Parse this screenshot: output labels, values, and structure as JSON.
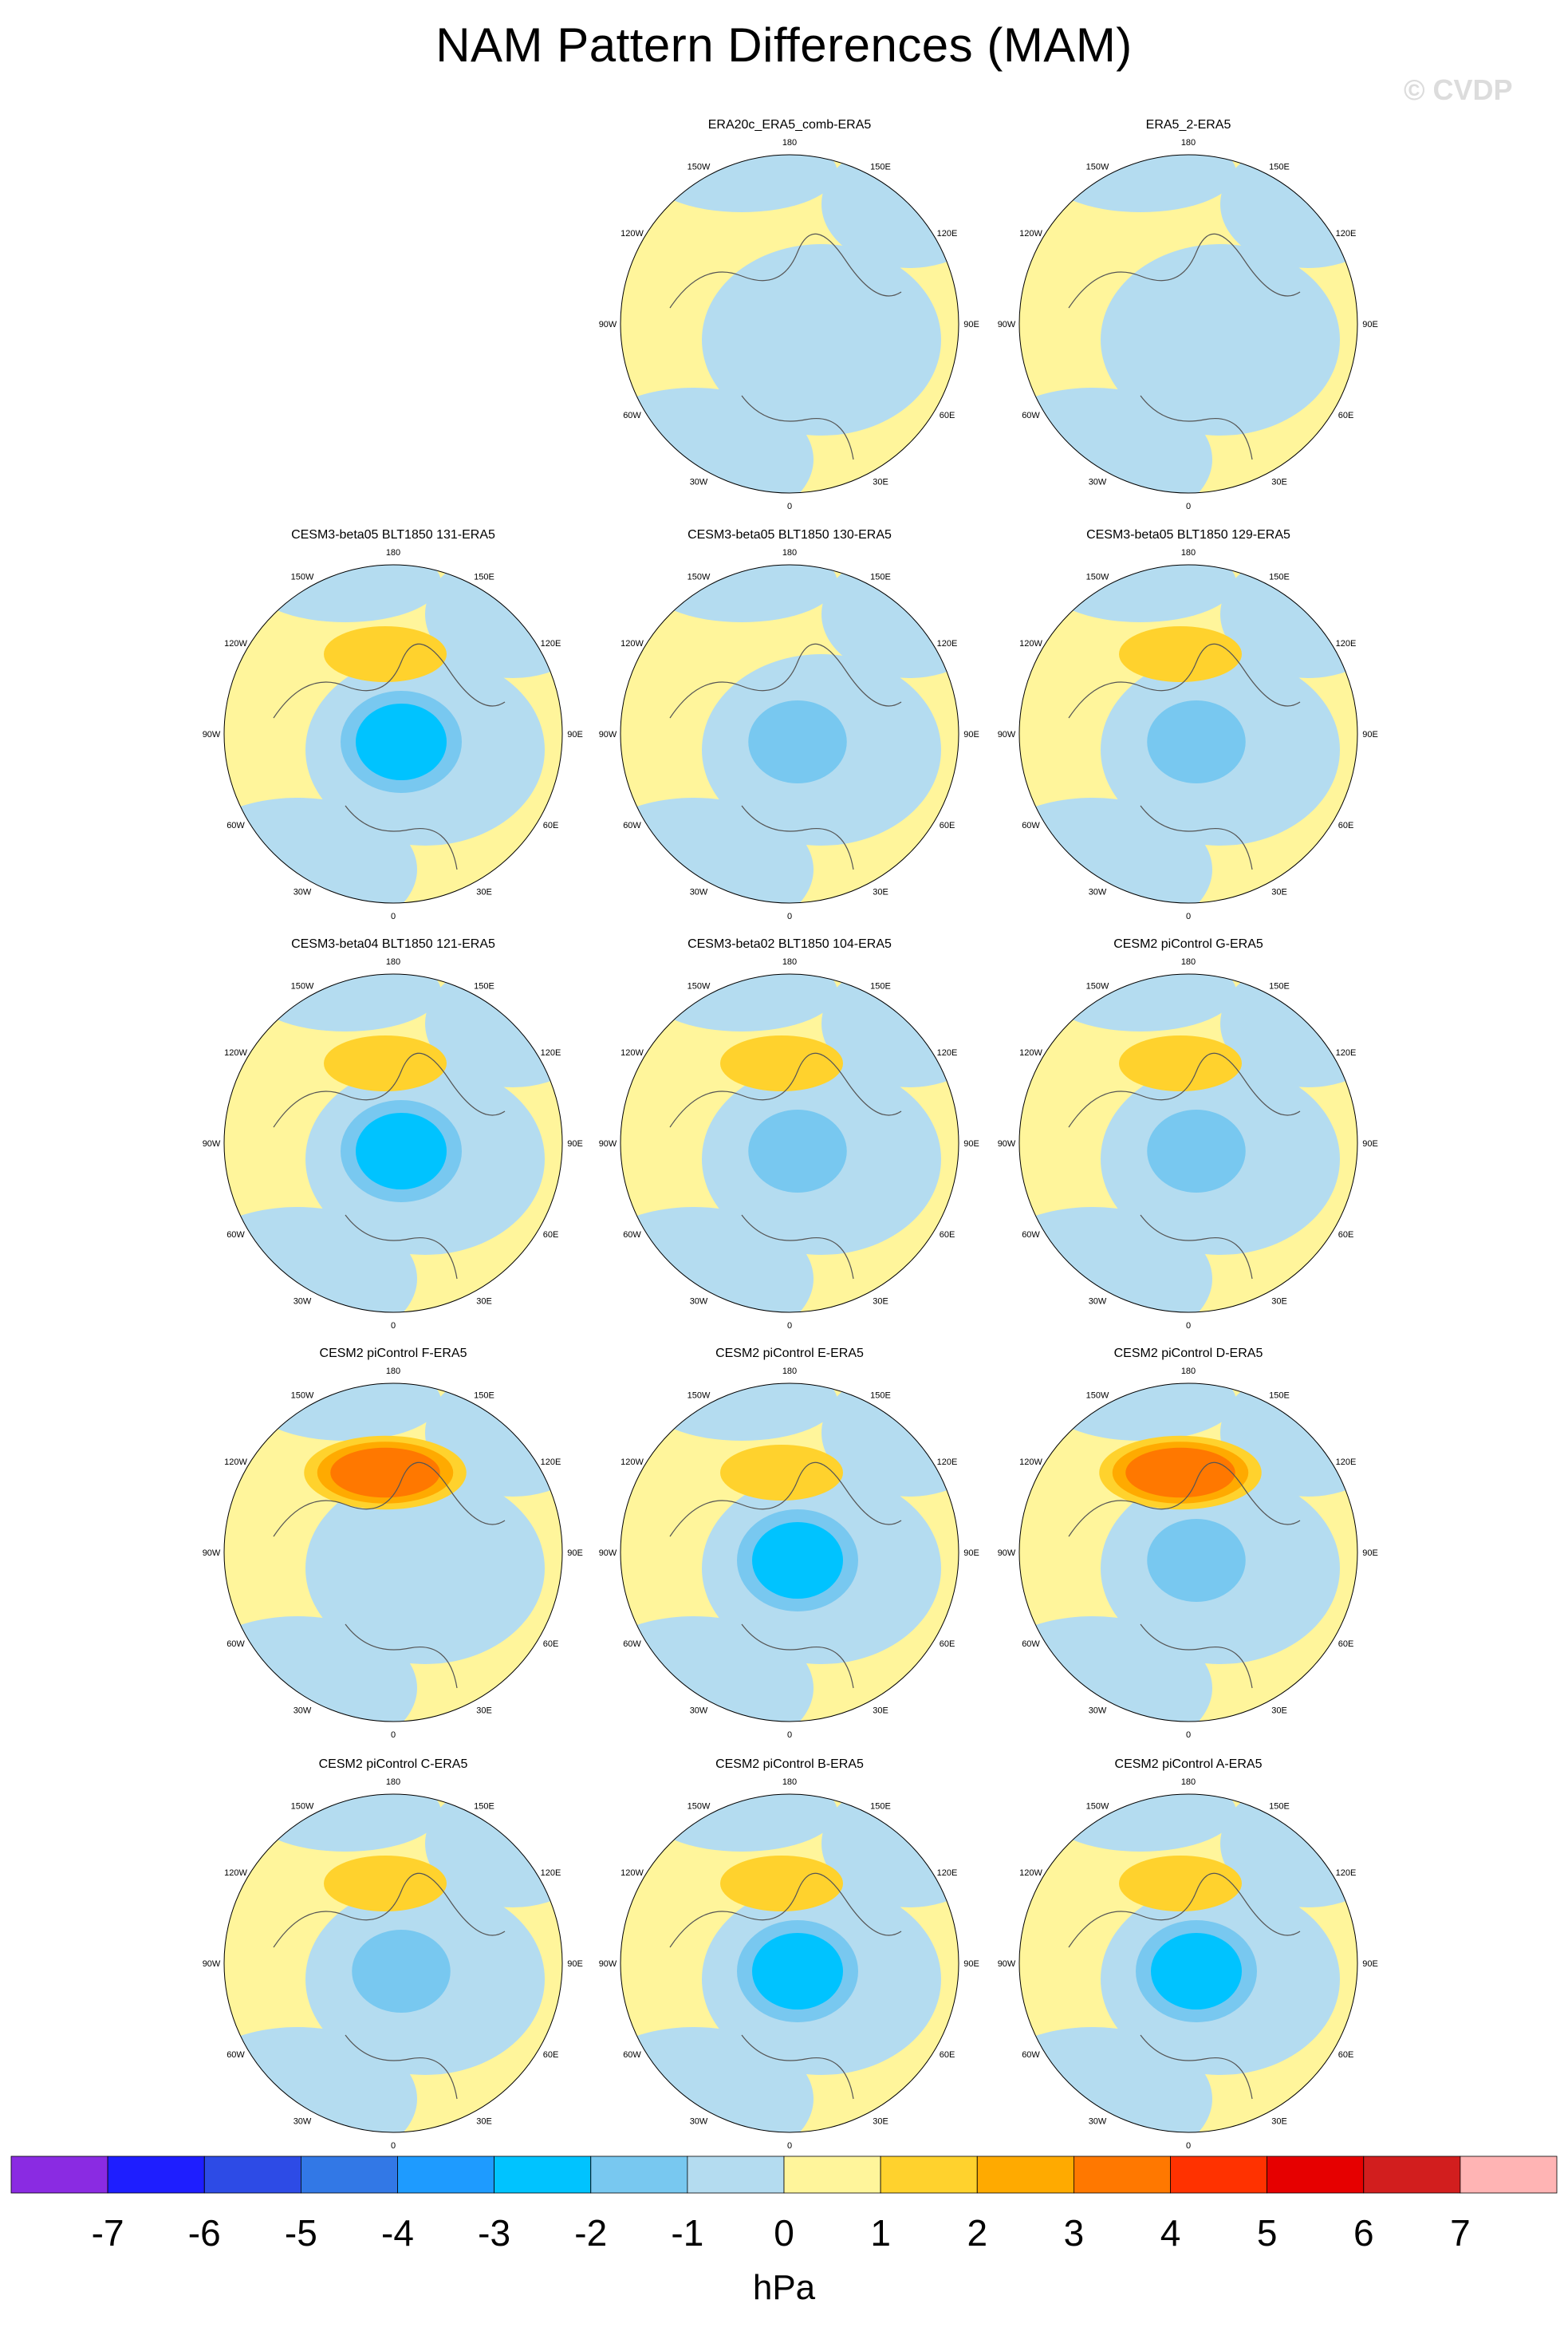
{
  "chart_data": {
    "type": "heatmap",
    "title": "NAM Pattern Differences (MAM)",
    "watermark": "© CVDP",
    "projection": "polar stereographic, Northern Hemisphere",
    "units": "hPa",
    "colorbar": {
      "levels": [
        "-7",
        "-6",
        "-5",
        "-4",
        "-3",
        "-2",
        "-1",
        "0",
        "1",
        "2",
        "3",
        "4",
        "5",
        "6",
        "7"
      ],
      "colors": [
        "#8a2be2",
        "#1e1eff",
        "#2d4be6",
        "#3278e6",
        "#1e9bff",
        "#00c3ff",
        "#78c8f0",
        "#b4dcf0",
        "#fff59b",
        "#ffd22d",
        "#ffaa00",
        "#ff7800",
        "#ff3200",
        "#e60000",
        "#d21e1e",
        "#ffb4b4"
      ]
    },
    "longitude_labels": [
      "180",
      "150E",
      "120E",
      "90E",
      "60E",
      "30E",
      "0",
      "30W",
      "60W",
      "90W",
      "120W",
      "150W"
    ],
    "panels": [
      {
        "title": "ERA20c_ERA5_comb-ERA5",
        "max_positive": 1,
        "max_negative": -1
      },
      {
        "title": "ERA5_2-ERA5",
        "max_positive": 1,
        "max_negative": -1
      },
      {
        "title": "CESM3-beta05 BLT1850 131-ERA5",
        "max_positive": 2,
        "max_negative": -3
      },
      {
        "title": "CESM3-beta05 BLT1850 130-ERA5",
        "max_positive": 1,
        "max_negative": -2
      },
      {
        "title": "CESM3-beta05 BLT1850 129-ERA5",
        "max_positive": 2,
        "max_negative": -2
      },
      {
        "title": "CESM3-beta04 BLT1850 121-ERA5",
        "max_positive": 2,
        "max_negative": -3
      },
      {
        "title": "CESM3-beta02 BLT1850 104-ERA5",
        "max_positive": 2,
        "max_negative": -2
      },
      {
        "title": "CESM2 piControl G-ERA5",
        "max_positive": 2,
        "max_negative": -2
      },
      {
        "title": "CESM2 piControl F-ERA5",
        "max_positive": 4,
        "max_negative": -1
      },
      {
        "title": "CESM2 piControl E-ERA5",
        "max_positive": 2,
        "max_negative": -3
      },
      {
        "title": "CESM2 piControl D-ERA5",
        "max_positive": 4,
        "max_negative": -2
      },
      {
        "title": "CESM2 piControl C-ERA5",
        "max_positive": 2,
        "max_negative": -2
      },
      {
        "title": "CESM2 piControl B-ERA5",
        "max_positive": 2,
        "max_negative": -3
      },
      {
        "title": "CESM2 piControl A-ERA5",
        "max_positive": 2,
        "max_negative": -3
      }
    ]
  }
}
